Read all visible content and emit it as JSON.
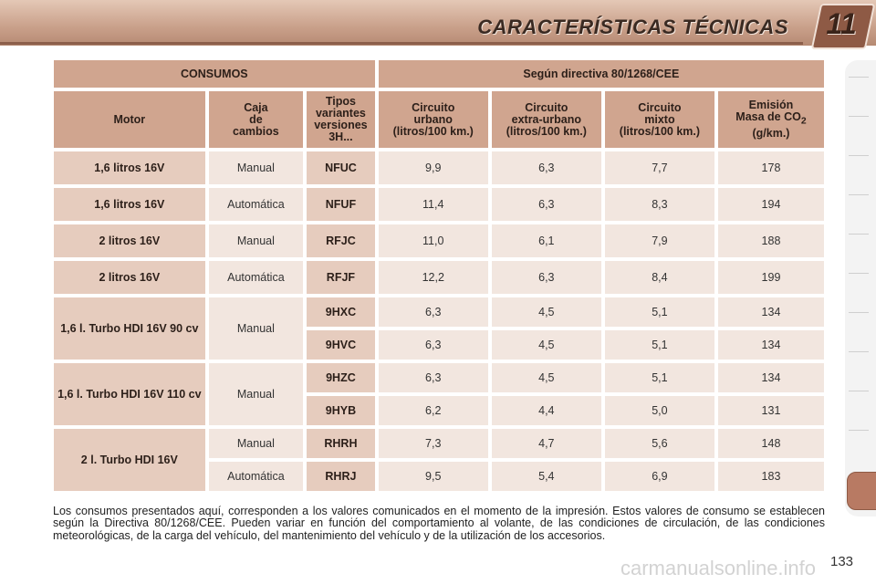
{
  "header": {
    "title": "CARACTERÍSTICAS TÉCNICAS",
    "chapter": "11"
  },
  "table": {
    "group_left": "CONSUMOS",
    "group_right": "Según directiva 80/1268/CEE",
    "col_motor": "Motor",
    "col_caja": [
      "Caja",
      "de",
      "cambios"
    ],
    "col_tipos": [
      "Tipos",
      "variantes",
      "versiones",
      "3H..."
    ],
    "col_urbano": [
      "Circuito",
      "urbano",
      "(litros/100 km.)"
    ],
    "col_extra": [
      "Circuito",
      "extra-urbano",
      "(litros/100 km.)"
    ],
    "col_mixto": [
      "Circuito",
      "mixto",
      "(litros/100 km.)"
    ],
    "col_emision": [
      "Emisión",
      "Masa de CO",
      "2",
      "(g/km.)"
    ],
    "rows": [
      {
        "motor": "1,6 litros 16V",
        "caja": "Manual",
        "tipo": "NFUC",
        "urbano": "9,9",
        "extra": "6,3",
        "mixto": "7,7",
        "co2": "178"
      },
      {
        "motor": "1,6 litros 16V",
        "caja": "Automática",
        "tipo": "NFUF",
        "urbano": "11,4",
        "extra": "6,3",
        "mixto": "8,3",
        "co2": "194"
      },
      {
        "motor": "2 litros 16V",
        "caja": "Manual",
        "tipo": "RFJC",
        "urbano": "11,0",
        "extra": "6,1",
        "mixto": "7,9",
        "co2": "188"
      },
      {
        "motor": "2 litros 16V",
        "caja": "Automática",
        "tipo": "RFJF",
        "urbano": "12,2",
        "extra": "6,3",
        "mixto": "8,4",
        "co2": "199"
      },
      {
        "motor": "1,6 l. Turbo HDI 16V 90 cv",
        "caja": "Manual",
        "tipo": "9HXC",
        "urbano": "6,3",
        "extra": "4,5",
        "mixto": "5,1",
        "co2": "134"
      },
      {
        "tipo": "9HVC",
        "urbano": "6,3",
        "extra": "4,5",
        "mixto": "5,1",
        "co2": "134"
      },
      {
        "motor": "1,6 l. Turbo HDI 16V 110 cv",
        "caja": "Manual",
        "tipo": "9HZC",
        "urbano": "6,3",
        "extra": "4,5",
        "mixto": "5,1",
        "co2": "134"
      },
      {
        "tipo": "9HYB",
        "urbano": "6,2",
        "extra": "4,4",
        "mixto": "5,0",
        "co2": "131"
      },
      {
        "motor": "2 l. Turbo HDI 16V",
        "caja": "Manual",
        "tipo": "RHRH",
        "urbano": "7,3",
        "extra": "4,7",
        "mixto": "5,6",
        "co2": "148"
      },
      {
        "caja": "Automática",
        "tipo": "RHRJ",
        "urbano": "9,5",
        "extra": "5,4",
        "mixto": "6,9",
        "co2": "183"
      }
    ]
  },
  "footnote": "Los consumos presentados aquí, corresponden a los valores comunicados en el momento de la impresión. Estos valores de consumo se establecen según la Directiva 80/1268/CEE. Pueden variar en función del comportamiento al volante, de las condiciones de circulación, de las condiciones meteorológicas, de la carga del vehículo, del mantenimiento del vehículo y de la utilización de los accesorios.",
  "page_number": "133",
  "watermark": "carmanualsonline.info"
}
